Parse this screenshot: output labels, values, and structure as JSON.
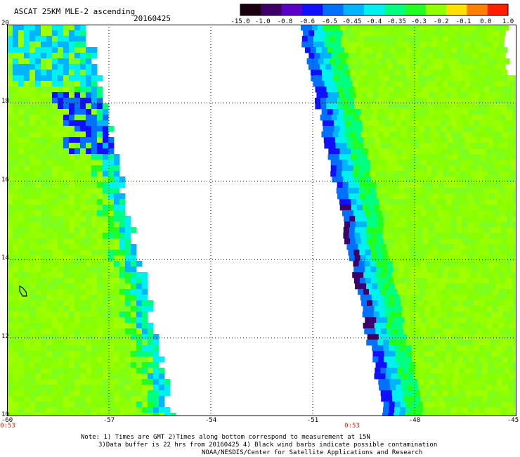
{
  "header": {
    "title": "ASCAT 25KM MLE-2 ascending",
    "date": "20160425"
  },
  "colorbar": {
    "labels": [
      "-15.0",
      "-1.0",
      "-0.8",
      "-0.6",
      "-0.5",
      "-0.45",
      "-0.4",
      "-0.35",
      "-0.3",
      "-0.2",
      "-0.1",
      "0.0",
      "1.0"
    ],
    "colors": [
      "#1a0010",
      "#3c0068",
      "#5a00c8",
      "#1010ff",
      "#0070ff",
      "#00b4ff",
      "#00f0f0",
      "#00ff80",
      "#20ff20",
      "#90ff00",
      "#ffe000",
      "#ff8000",
      "#ff2000"
    ]
  },
  "map": {
    "lat_labels": [
      "20",
      "18",
      "16",
      "14",
      "12",
      "10"
    ],
    "lon_labels": [
      "-60",
      "-57",
      "-54",
      "-51",
      "-48",
      "-45"
    ],
    "time_labels": [
      "0:53",
      "0:53"
    ],
    "latitude_range": [
      10,
      20
    ],
    "longitude_range": [
      -60,
      -45
    ]
  },
  "notes": [
    "Note: 1) Times are GMT 2)Times along bottom correspond to measurement at 15N",
    "3)Data buffer is 22 hrs from 20160425 4) Black wind barbs indicate possible contamination",
    "NOAA/NESDIS/Center for Satellite Applications and Research"
  ]
}
